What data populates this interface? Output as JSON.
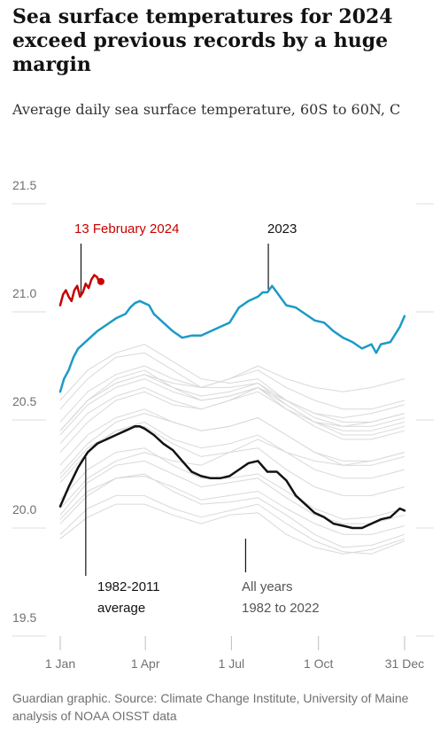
{
  "chart_data": {
    "type": "line",
    "title": "Sea surface temperatures for 2024 exceed previous records by a huge margin",
    "subtitle": "Average daily sea surface temperature, 60S to 60N, C",
    "source": "Guardian graphic. Source: Climate Change Institute, University of Maine analysis of NOAA OISST data",
    "ylim": [
      19.5,
      21.5
    ],
    "xlim": [
      1,
      366
    ],
    "y_ticks": [
      {
        "value": 21.5,
        "label": "21.5"
      },
      {
        "value": 21.0,
        "label": "21.0"
      },
      {
        "value": 20.5,
        "label": "20.5"
      },
      {
        "value": 20.0,
        "label": "20.0"
      },
      {
        "value": 19.5,
        "label": "19.5"
      }
    ],
    "x_ticks": [
      {
        "day": 1,
        "label": "1 Jan"
      },
      {
        "day": 91,
        "label": "1 Apr"
      },
      {
        "day": 182,
        "label": "1 Jul"
      },
      {
        "day": 274,
        "label": "1 Oct"
      },
      {
        "day": 365,
        "label": "31 Dec"
      }
    ],
    "grid": false,
    "annotations": [
      {
        "id": "ann-2024",
        "lines": [
          "13 February 2024"
        ],
        "color": "#c70000"
      },
      {
        "id": "ann-2023",
        "lines": [
          "2023"
        ],
        "color": "#121212"
      },
      {
        "id": "ann-avg",
        "lines": [
          "1982-2011",
          "average"
        ],
        "color": "#121212"
      },
      {
        "id": "ann-all",
        "lines": [
          "All years",
          "1982 to 2022"
        ],
        "color": "#555555"
      }
    ],
    "series": [
      {
        "id": "2024",
        "color": "#c70000",
        "highlight_end": true,
        "x": [
          1,
          4,
          7,
          10,
          13,
          16,
          19,
          22,
          25,
          28,
          31,
          34,
          37,
          40,
          42,
          44
        ],
        "y": [
          20.94,
          20.99,
          21.01,
          20.98,
          20.96,
          21.01,
          21.03,
          20.98,
          21.0,
          21.04,
          21.02,
          21.06,
          21.08,
          21.07,
          21.05,
          21.05
        ]
      },
      {
        "id": "2023",
        "color": "#1c9ac7",
        "x": [
          1,
          5,
          10,
          15,
          20,
          30,
          40,
          50,
          60,
          70,
          75,
          80,
          85,
          90,
          95,
          100,
          110,
          120,
          130,
          140,
          150,
          160,
          170,
          180,
          190,
          200,
          210,
          215,
          220,
          225,
          230,
          235,
          240,
          250,
          260,
          270,
          280,
          290,
          300,
          310,
          320,
          330,
          335,
          340,
          350,
          360,
          365
        ],
        "y": [
          20.54,
          20.6,
          20.64,
          20.7,
          20.74,
          20.78,
          20.82,
          20.85,
          20.88,
          20.9,
          20.93,
          20.95,
          20.96,
          20.95,
          20.94,
          20.9,
          20.86,
          20.82,
          20.79,
          20.8,
          20.8,
          20.82,
          20.84,
          20.86,
          20.93,
          20.96,
          20.98,
          21.0,
          21.0,
          21.03,
          21.0,
          20.97,
          20.94,
          20.93,
          20.9,
          20.87,
          20.86,
          20.82,
          20.79,
          20.77,
          20.74,
          20.76,
          20.72,
          20.76,
          20.77,
          20.84,
          20.89
        ]
      },
      {
        "id": "1982-2011 average",
        "color": "#121212",
        "x": [
          1,
          10,
          20,
          30,
          40,
          50,
          60,
          70,
          80,
          85,
          90,
          100,
          110,
          120,
          130,
          140,
          150,
          160,
          170,
          180,
          190,
          200,
          210,
          220,
          230,
          240,
          250,
          260,
          270,
          280,
          290,
          300,
          310,
          320,
          330,
          340,
          350,
          360,
          365
        ],
        "y": [
          20.01,
          20.1,
          20.19,
          20.26,
          20.3,
          20.32,
          20.34,
          20.36,
          20.38,
          20.38,
          20.37,
          20.34,
          20.3,
          20.27,
          20.22,
          20.17,
          20.15,
          20.14,
          20.14,
          20.15,
          20.18,
          20.21,
          20.22,
          20.17,
          20.17,
          20.13,
          20.06,
          20.02,
          19.98,
          19.96,
          19.93,
          19.92,
          19.91,
          19.91,
          19.93,
          19.95,
          19.96,
          20.0,
          19.99
        ]
      }
    ],
    "background_series_label": "All years 1982 to 2022",
    "background_series_color": "#d9d9d9",
    "background_series": [
      {
        "year": 1982,
        "x": [
          1,
          30,
          60,
          90,
          120,
          150,
          180,
          210,
          240,
          270,
          300,
          330,
          365
        ],
        "y": [
          19.86,
          19.96,
          20.02,
          20.02,
          19.97,
          19.93,
          19.97,
          19.98,
          19.88,
          19.82,
          19.79,
          19.81,
          19.86
        ]
      },
      {
        "year": 1985,
        "x": [
          1,
          30,
          60,
          90,
          120,
          150,
          180,
          210,
          240,
          270,
          300,
          330,
          365
        ],
        "y": [
          19.88,
          20.0,
          20.06,
          20.06,
          20.0,
          19.96,
          19.99,
          20.02,
          19.93,
          19.85,
          19.8,
          19.79,
          19.85
        ]
      },
      {
        "year": 1988,
        "x": [
          1,
          30,
          60,
          90,
          120,
          150,
          180,
          210,
          240,
          270,
          300,
          330,
          365
        ],
        "y": [
          19.95,
          20.08,
          20.14,
          20.16,
          20.08,
          20.02,
          20.03,
          20.05,
          19.97,
          19.88,
          19.82,
          19.83,
          19.88
        ]
      },
      {
        "year": 1991,
        "x": [
          1,
          30,
          60,
          90,
          120,
          150,
          180,
          210,
          240,
          270,
          300,
          330,
          365
        ],
        "y": [
          19.93,
          20.06,
          20.14,
          20.15,
          20.1,
          20.04,
          20.06,
          20.08,
          20.0,
          19.93,
          19.88,
          19.88,
          19.92
        ]
      },
      {
        "year": 1994,
        "x": [
          1,
          30,
          60,
          90,
          120,
          150,
          180,
          210,
          240,
          270,
          300,
          330,
          365
        ],
        "y": [
          19.97,
          20.12,
          20.2,
          20.22,
          20.16,
          20.1,
          20.12,
          20.14,
          20.05,
          19.97,
          19.93,
          19.93,
          19.97
        ]
      },
      {
        "year": 1997,
        "x": [
          1,
          30,
          60,
          90,
          120,
          150,
          180,
          210,
          240,
          270,
          300,
          330,
          365
        ],
        "y": [
          20.0,
          20.14,
          20.22,
          20.26,
          20.22,
          20.2,
          20.26,
          20.32,
          20.26,
          20.22,
          20.2,
          20.22,
          20.26
        ]
      },
      {
        "year": 2000,
        "x": [
          1,
          30,
          60,
          90,
          120,
          150,
          180,
          210,
          240,
          270,
          300,
          330,
          365
        ],
        "y": [
          20.04,
          20.18,
          20.26,
          20.28,
          20.2,
          20.14,
          20.14,
          20.16,
          20.08,
          20.0,
          19.95,
          19.96,
          20.0
        ]
      },
      {
        "year": 2003,
        "x": [
          1,
          30,
          60,
          90,
          120,
          150,
          180,
          210,
          240,
          270,
          300,
          330,
          365
        ],
        "y": [
          20.14,
          20.28,
          20.36,
          20.38,
          20.3,
          20.24,
          20.26,
          20.28,
          20.18,
          20.1,
          20.06,
          20.06,
          20.1
        ]
      },
      {
        "year": 2006,
        "x": [
          1,
          30,
          60,
          90,
          120,
          150,
          180,
          210,
          240,
          270,
          300,
          330,
          365
        ],
        "y": [
          20.12,
          20.26,
          20.36,
          20.4,
          20.32,
          20.28,
          20.3,
          20.34,
          20.26,
          20.18,
          20.14,
          20.14,
          20.18
        ]
      },
      {
        "year": 2009,
        "x": [
          1,
          30,
          60,
          90,
          120,
          150,
          180,
          210,
          240,
          270,
          300,
          330,
          365
        ],
        "y": [
          20.16,
          20.3,
          20.4,
          20.44,
          20.4,
          20.36,
          20.38,
          20.42,
          20.34,
          20.26,
          20.2,
          20.2,
          20.24
        ]
      },
      {
        "year": 2012,
        "x": [
          1,
          30,
          60,
          90,
          120,
          150,
          180,
          210,
          240,
          270,
          300,
          330,
          365
        ],
        "y": [
          20.2,
          20.34,
          20.42,
          20.46,
          20.4,
          20.36,
          20.38,
          20.42,
          20.34,
          20.26,
          20.22,
          20.22,
          20.26
        ]
      },
      {
        "year": 2014,
        "x": [
          1,
          30,
          60,
          90,
          120,
          150,
          180,
          210,
          240,
          270,
          300,
          330,
          365
        ],
        "y": [
          20.26,
          20.4,
          20.5,
          20.54,
          20.48,
          20.46,
          20.5,
          20.56,
          20.5,
          20.44,
          20.42,
          20.44,
          20.48
        ]
      },
      {
        "year": 2015,
        "x": [
          1,
          30,
          60,
          90,
          120,
          150,
          180,
          210,
          240,
          270,
          300,
          330,
          365
        ],
        "y": [
          20.36,
          20.5,
          20.58,
          20.62,
          20.58,
          20.56,
          20.6,
          20.66,
          20.6,
          20.56,
          20.54,
          20.56,
          20.6
        ]
      },
      {
        "year": 2016,
        "x": [
          1,
          30,
          60,
          90,
          120,
          150,
          180,
          210,
          240,
          270,
          300,
          330,
          365
        ],
        "y": [
          20.5,
          20.64,
          20.72,
          20.76,
          20.68,
          20.6,
          20.58,
          20.6,
          20.5,
          20.42,
          20.38,
          20.38,
          20.42
        ]
      },
      {
        "year": 2017,
        "x": [
          1,
          30,
          60,
          90,
          120,
          150,
          180,
          210,
          240,
          270,
          300,
          330,
          365
        ],
        "y": [
          20.36,
          20.5,
          20.6,
          20.64,
          20.56,
          20.5,
          20.52,
          20.56,
          20.46,
          20.38,
          20.32,
          20.32,
          20.36
        ]
      },
      {
        "year": 2018,
        "x": [
          1,
          30,
          60,
          90,
          120,
          150,
          180,
          210,
          240,
          270,
          300,
          330,
          365
        ],
        "y": [
          20.3,
          20.44,
          20.52,
          20.56,
          20.5,
          20.46,
          20.5,
          20.54,
          20.46,
          20.4,
          20.38,
          20.4,
          20.44
        ]
      },
      {
        "year": 2019,
        "x": [
          1,
          30,
          60,
          90,
          120,
          150,
          180,
          210,
          240,
          270,
          300,
          330,
          365
        ],
        "y": [
          20.4,
          20.54,
          20.62,
          20.66,
          20.6,
          20.56,
          20.6,
          20.64,
          20.56,
          20.5,
          20.46,
          20.46,
          20.5
        ]
      },
      {
        "year": 2020,
        "x": [
          1,
          30,
          60,
          90,
          120,
          150,
          180,
          210,
          240,
          270,
          300,
          330,
          365
        ],
        "y": [
          20.46,
          20.6,
          20.7,
          20.72,
          20.64,
          20.56,
          20.56,
          20.58,
          20.48,
          20.4,
          20.34,
          20.34,
          20.38
        ]
      },
      {
        "year": 2021,
        "x": [
          1,
          30,
          60,
          90,
          120,
          150,
          180,
          210,
          240,
          270,
          300,
          330,
          365
        ],
        "y": [
          20.34,
          20.48,
          20.56,
          20.6,
          20.54,
          20.5,
          20.52,
          20.56,
          20.48,
          20.4,
          20.36,
          20.36,
          20.4
        ]
      },
      {
        "year": 2022,
        "x": [
          1,
          30,
          60,
          90,
          120,
          150,
          180,
          210,
          240,
          270,
          300,
          330,
          365
        ],
        "y": [
          20.36,
          20.5,
          20.58,
          20.62,
          20.56,
          20.52,
          20.54,
          20.58,
          20.5,
          20.44,
          20.4,
          20.4,
          20.44
        ]
      }
    ]
  }
}
